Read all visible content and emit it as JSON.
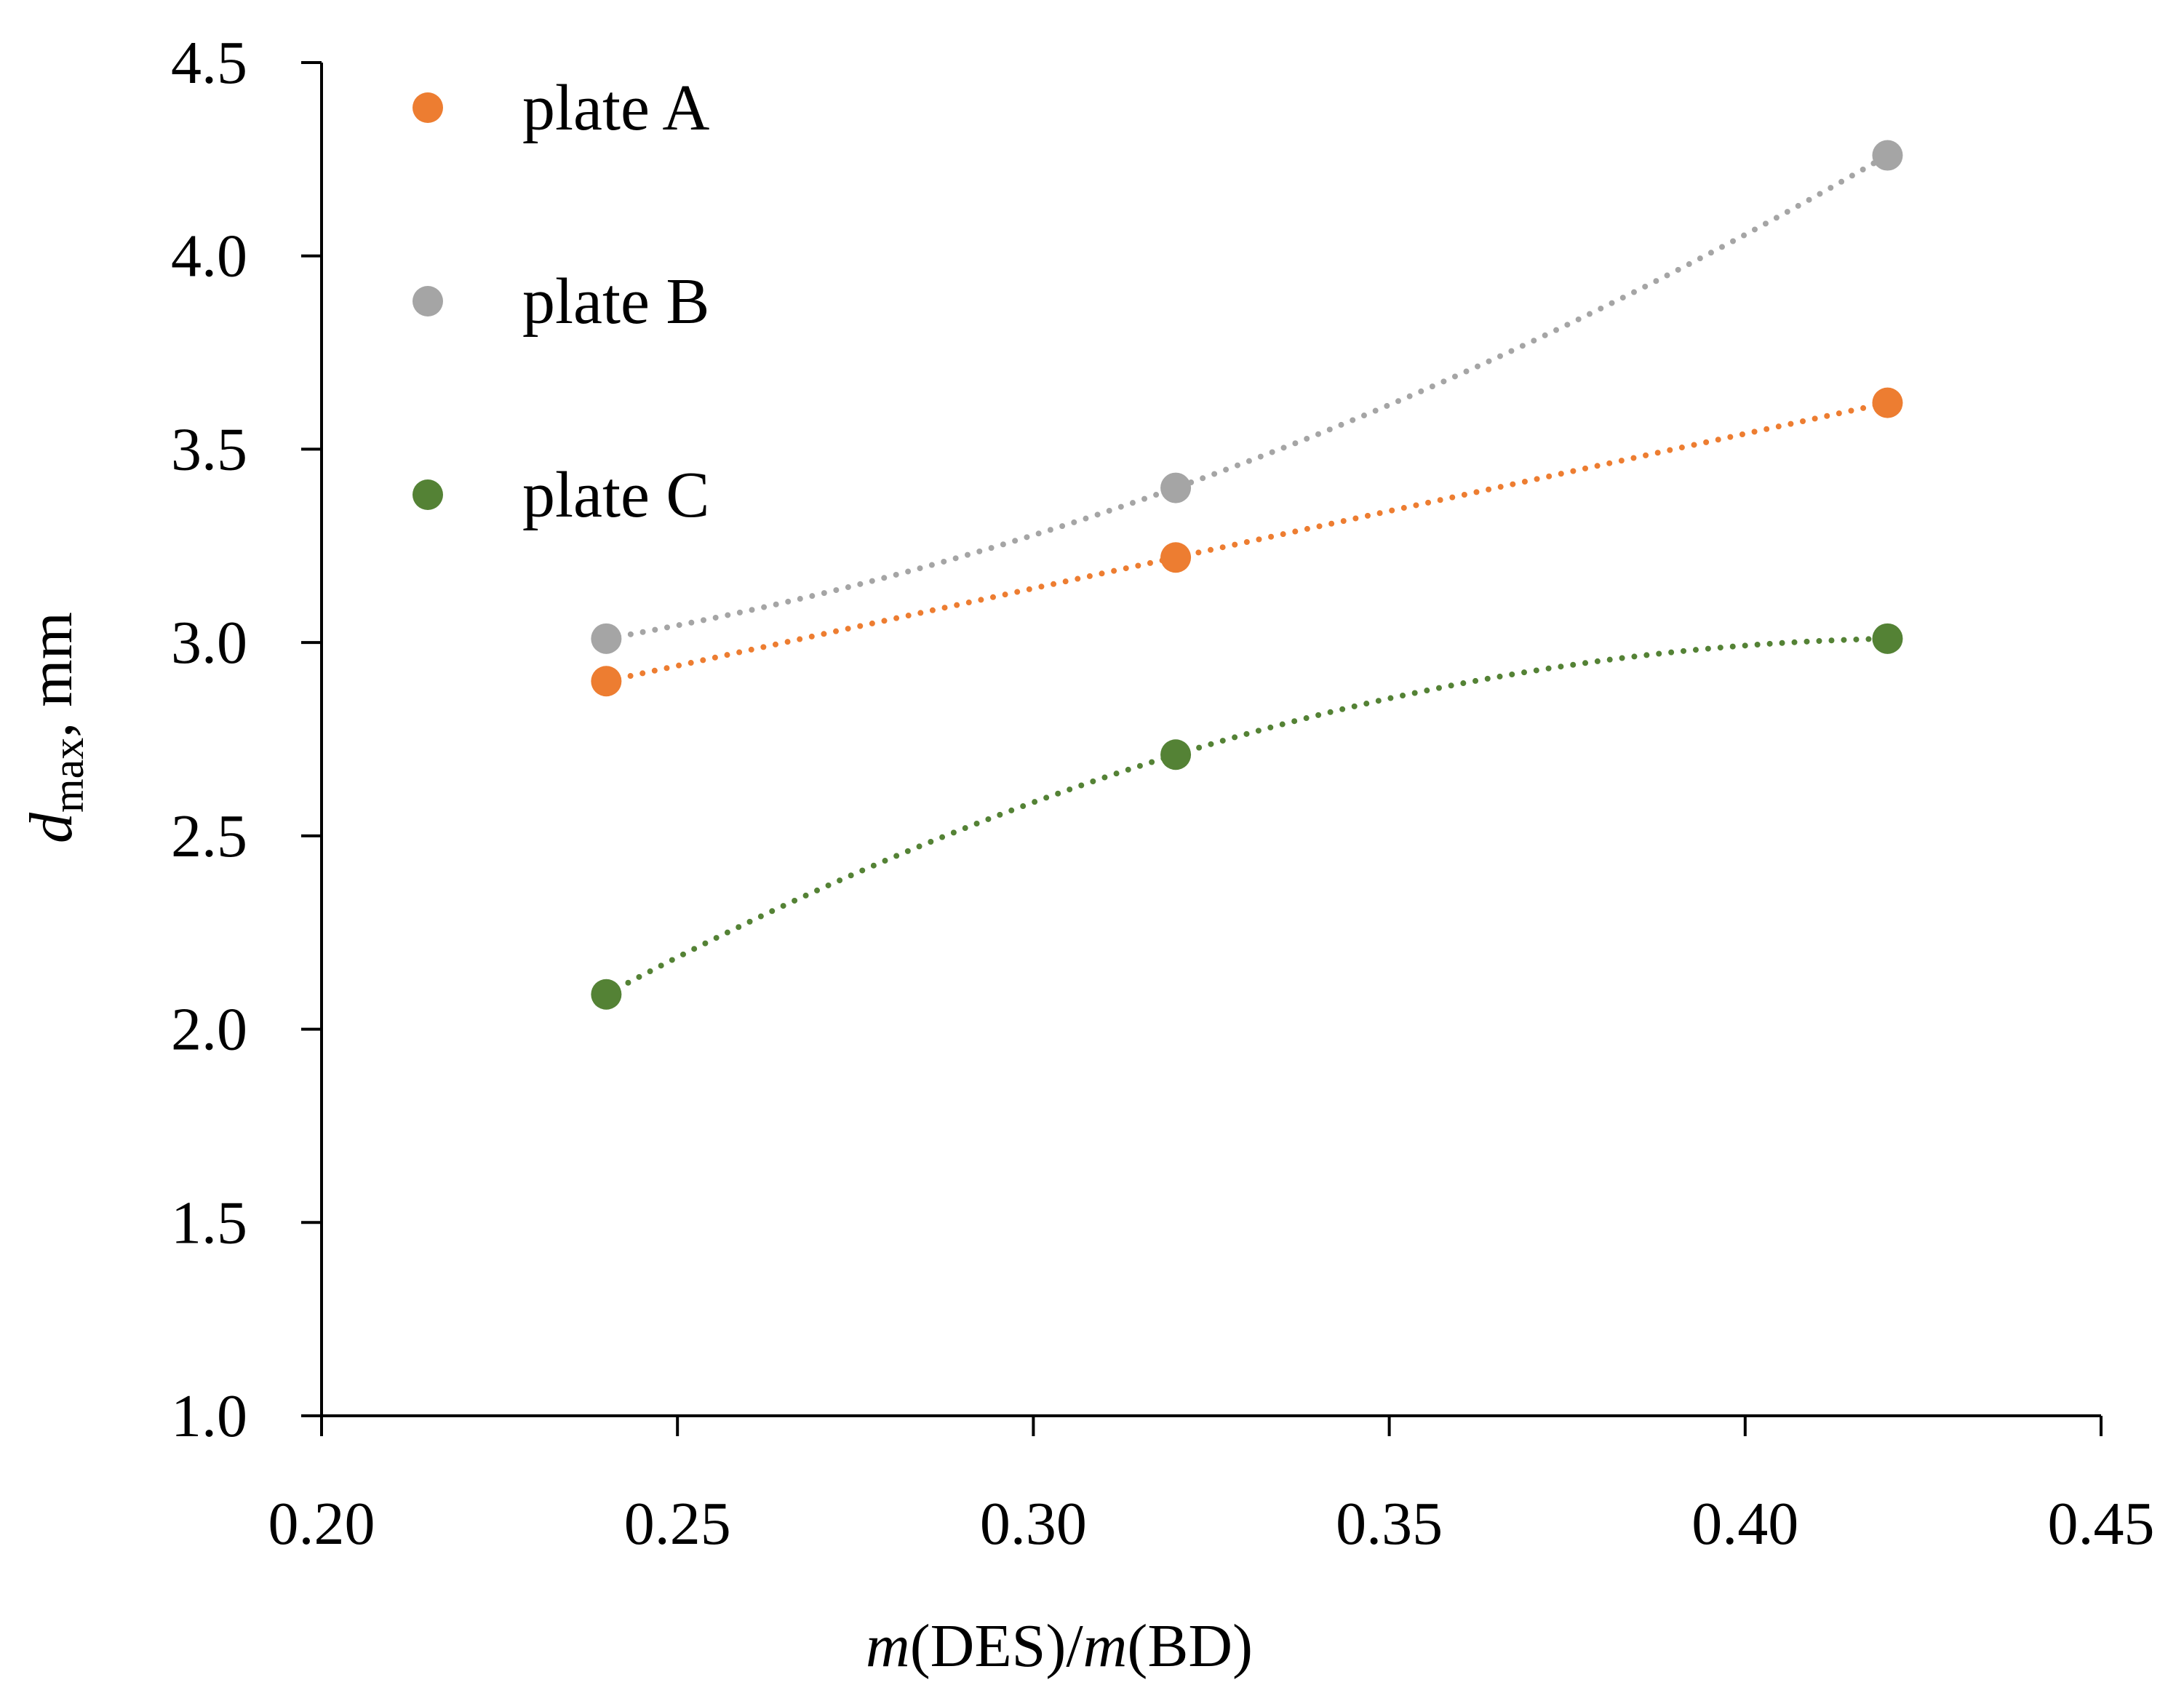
{
  "chart_data": {
    "type": "scatter",
    "title": "",
    "xlabel": {
      "prefix_italic": "m",
      "text1": "(DES)/",
      "mid_italic": "m",
      "text2": "(BD)"
    },
    "ylabel": {
      "symbol": "d",
      "subscript": "max",
      "unit": ", mm"
    },
    "xlim": [
      0.2,
      0.45
    ],
    "ylim": [
      1.0,
      4.5
    ],
    "x_ticks": [
      "0.20",
      "0.25",
      "0.30",
      "0.35",
      "0.40",
      "0.45"
    ],
    "x_tick_values": [
      0.2,
      0.25,
      0.3,
      0.35,
      0.4,
      0.45
    ],
    "y_ticks": [
      "1.0",
      "1.5",
      "2.0",
      "2.5",
      "3.0",
      "3.5",
      "4.0",
      "4.5"
    ],
    "y_tick_values": [
      1.0,
      1.5,
      2.0,
      2.5,
      3.0,
      3.5,
      4.0,
      4.5
    ],
    "grid": false,
    "legend_position": "top-left",
    "trendline": "dotted polynomial",
    "series": [
      {
        "name": "plate A",
        "color": "#ED7D31",
        "x": [
          0.24,
          0.32,
          0.42
        ],
        "y": [
          2.9,
          3.22,
          3.62
        ]
      },
      {
        "name": "plate B",
        "color": "#A5A5A5",
        "x": [
          0.24,
          0.32,
          0.42
        ],
        "y": [
          3.01,
          3.4,
          4.26
        ]
      },
      {
        "name": "plate C",
        "color": "#548235",
        "x": [
          0.24,
          0.32,
          0.42
        ],
        "y": [
          2.09,
          2.71,
          3.01
        ]
      }
    ]
  }
}
